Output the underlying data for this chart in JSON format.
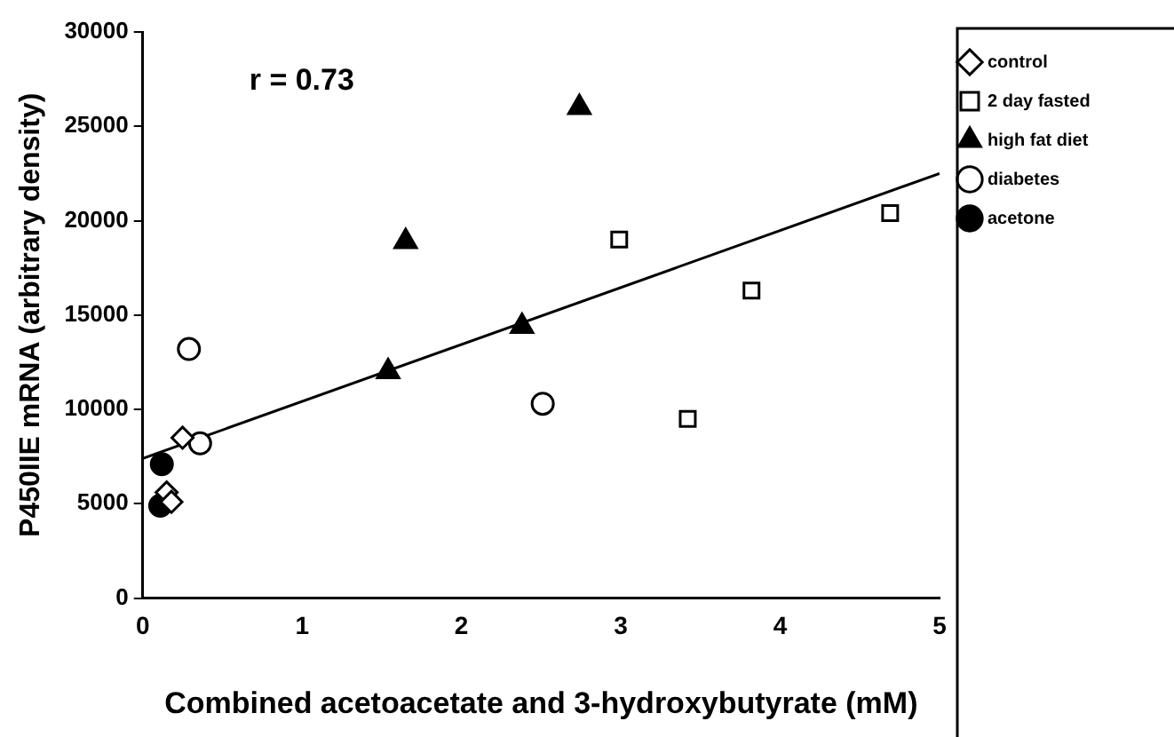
{
  "chart_data": {
    "type": "scatter",
    "xlabel": "Combined acetoacetate and 3-hydroxybutyrate (mM)",
    "ylabel": "P450IIE mRNA (arbitrary density)",
    "annotations": [
      "r = 0.73"
    ],
    "xlim": [
      0,
      5
    ],
    "xticks": [
      0,
      1,
      2,
      3,
      4,
      5
    ],
    "ylim": [
      0,
      30000
    ],
    "yticks": [
      0,
      5000,
      10000,
      15000,
      20000,
      25000,
      30000
    ],
    "grid": false,
    "legend": "top right",
    "series": [
      {
        "name": "control",
        "color": "#ffffff",
        "marker": "diamond",
        "x": [
          0.25,
          0.15,
          0.18
        ],
        "values": [
          8500,
          5600,
          5100
        ]
      },
      {
        "name": "2 day fasted",
        "color": "#ffffff",
        "marker": "square",
        "x": [
          2.99,
          3.82,
          3.42,
          4.69
        ],
        "values": [
          19000,
          16300,
          9500,
          20400
        ]
      },
      {
        "name": "high fat diet",
        "color": "#000000",
        "marker": "triangle",
        "x": [
          2.74,
          1.65,
          1.54,
          2.38
        ],
        "values": [
          26000,
          18900,
          12000,
          14400
        ]
      },
      {
        "name": "diabetes",
        "color": "#ffffff",
        "marker": "circle",
        "x": [
          0.29,
          0.36,
          2.51
        ],
        "values": [
          13200,
          8200,
          10300
        ]
      },
      {
        "name": "acetone",
        "color": "#000000",
        "marker": "circle",
        "x": [
          0.12,
          0.11
        ],
        "values": [
          7100,
          4900
        ]
      },
      {
        "type": "line",
        "color": "#000000",
        "marker": "none",
        "line_style": "solid",
        "x": [
          0,
          5
        ],
        "values": [
          7400,
          22500
        ]
      }
    ]
  }
}
